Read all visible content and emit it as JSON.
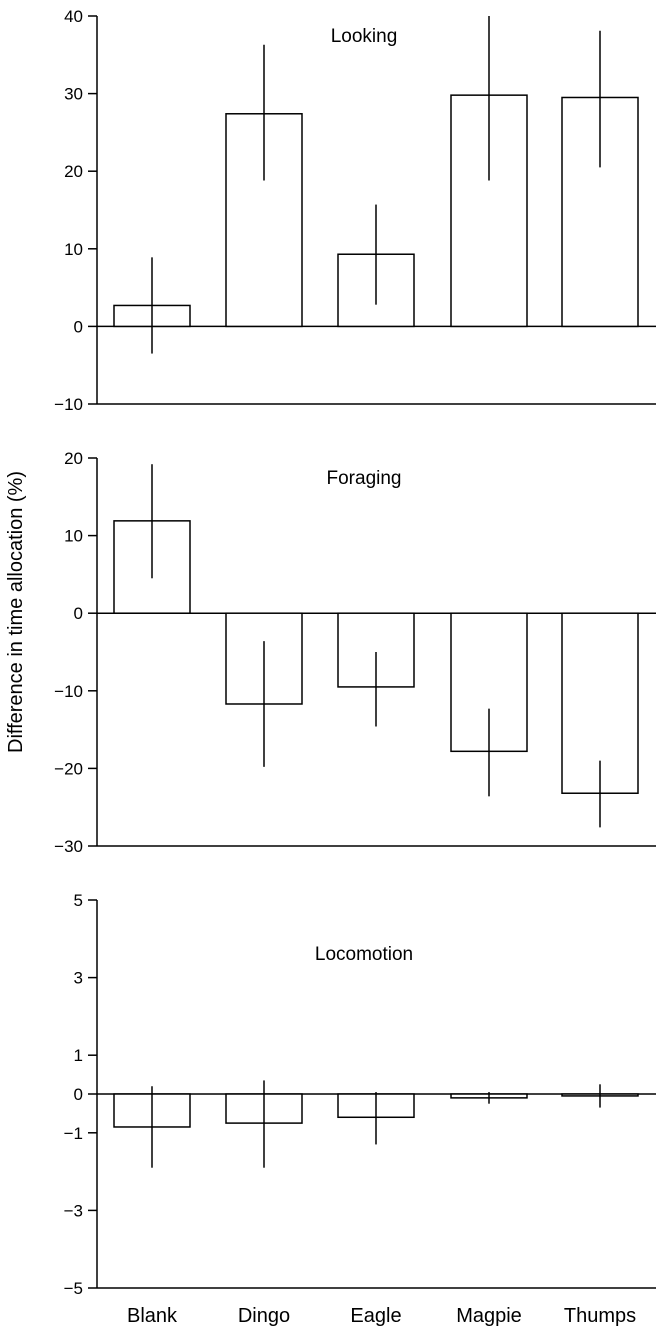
{
  "chart_data": {
    "type": "bar",
    "ylabel": "Difference in time allocation (%)",
    "categories": [
      "Blank",
      "Dingo",
      "Eagle",
      "Magpie",
      "Thumps"
    ],
    "panels": [
      {
        "title": "Looking",
        "ylim": [
          -10,
          40
        ],
        "yticks": [
          -10,
          0,
          10,
          20,
          30,
          40
        ],
        "ytick_labels": [
          "−10",
          "0",
          "10",
          "20",
          "30",
          "40"
        ],
        "values": [
          2.7,
          27.4,
          9.3,
          29.8,
          29.5
        ],
        "err_low": [
          -3.5,
          18.8,
          2.8,
          18.8,
          20.5
        ],
        "err_high": [
          8.9,
          36.3,
          15.7,
          40.0,
          38.1
        ]
      },
      {
        "title": "Foraging",
        "ylim": [
          -30,
          20
        ],
        "yticks": [
          -30,
          -20,
          -10,
          0,
          10,
          20
        ],
        "ytick_labels": [
          "−30",
          "−20",
          "−10",
          "0",
          "10",
          "20"
        ],
        "values": [
          11.9,
          -11.7,
          -9.5,
          -17.8,
          -23.2
        ],
        "err_low": [
          4.5,
          -19.8,
          -14.6,
          -23.6,
          -27.6
        ],
        "err_high": [
          19.2,
          -3.6,
          -5.0,
          -12.3,
          -19.0
        ]
      },
      {
        "title": "Locomotion",
        "ylim": [
          -5,
          5
        ],
        "yticks": [
          -5,
          -3,
          -1,
          0,
          1,
          3,
          5
        ],
        "ytick_labels": [
          "−5",
          "−3",
          "−1",
          "0",
          "1",
          "3",
          "5"
        ],
        "values": [
          -0.85,
          -0.75,
          -0.6,
          -0.1,
          -0.05
        ],
        "err_low": [
          -1.9,
          -1.9,
          -1.3,
          -0.25,
          -0.35
        ],
        "err_high": [
          0.2,
          0.35,
          0.05,
          0.05,
          0.25
        ]
      }
    ]
  }
}
